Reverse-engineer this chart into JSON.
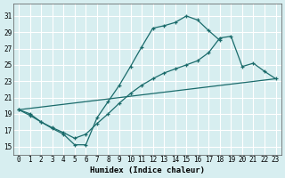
{
  "xlabel": "Humidex (Indice chaleur)",
  "bg_color": "#d7eef0",
  "grid_color": "#ffffff",
  "line_color": "#1a6b6b",
  "xlim": [
    -0.5,
    23.5
  ],
  "ylim": [
    14,
    32.5
  ],
  "xticks": [
    0,
    1,
    2,
    3,
    4,
    5,
    6,
    7,
    8,
    9,
    10,
    11,
    12,
    13,
    14,
    15,
    16,
    17,
    18,
    19,
    20,
    21,
    22,
    23
  ],
  "yticks": [
    15,
    17,
    19,
    21,
    23,
    25,
    27,
    29,
    31
  ],
  "curve1_x": [
    0,
    1,
    2,
    3,
    4,
    5,
    6,
    7,
    8,
    9,
    10,
    11,
    12,
    13,
    14,
    15,
    16,
    17,
    18
  ],
  "curve1_y": [
    19.5,
    19.0,
    18.0,
    17.2,
    16.5,
    15.2,
    15.2,
    18.5,
    20.5,
    22.5,
    24.8,
    27.2,
    29.5,
    29.8,
    30.2,
    31.0,
    30.5,
    29.2,
    28.0
  ],
  "curve2_x": [
    0,
    23
  ],
  "curve2_y": [
    19.5,
    23.3
  ],
  "curve3_x": [
    0,
    1,
    2,
    3,
    4,
    5,
    6,
    7,
    8,
    9,
    10,
    11,
    12,
    13,
    14,
    15,
    16,
    17,
    18,
    19,
    20,
    21,
    22,
    23
  ],
  "curve3_y": [
    19.5,
    18.8,
    18.0,
    17.3,
    16.7,
    16.0,
    16.5,
    17.8,
    19.0,
    20.3,
    21.5,
    22.5,
    23.3,
    24.0,
    24.5,
    25.0,
    25.5,
    26.5,
    28.3,
    28.5,
    24.8,
    25.2,
    24.2,
    23.3
  ]
}
